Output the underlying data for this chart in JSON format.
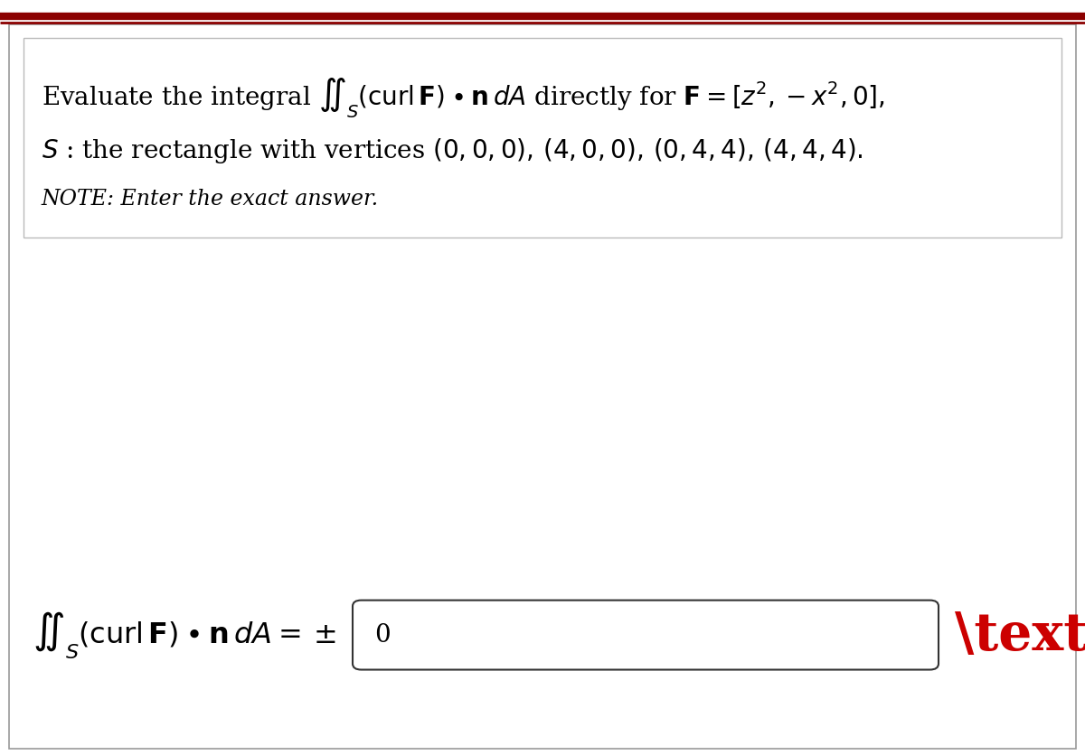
{
  "bg_color": "#ffffff",
  "border_color": "#8b0000",
  "top_stripe_color": "#8b0000",
  "text_color": "#000000",
  "x_mark_color": "#cc0000",
  "answer_box_border": "#333333",
  "line1": "Evaluate the integral $\\iint_S (\\mathrm{curl}\\, \\mathbf{F}) \\bullet \\mathbf{n}\\, dA$ directly for $\\mathbf{F}= [z^2, -x^2, 0],$",
  "line2": "$S$ : the rectangle with vertices $(0,0,0),\\,(4,0,0),\\,(0,4,4),\\,(4,4,4).$",
  "line3": "NOTE: Enter the exact answer.",
  "bottom_formula": "$\\iint_S (\\mathrm{curl}\\, \\mathbf{F}) \\bullet \\mathbf{n}\\, dA = \\pm$",
  "answer": "0",
  "font_size_line1": 20,
  "font_size_line2": 20,
  "font_size_line3": 17,
  "font_size_bottom": 23,
  "font_size_answer": 20,
  "font_size_xmark": 42
}
